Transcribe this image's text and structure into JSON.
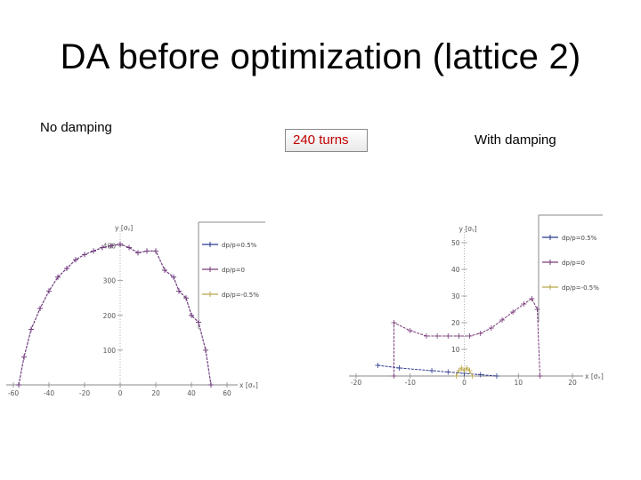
{
  "slide": {
    "title": "DA before optimization (lattice 2)",
    "left_label": "No  damping",
    "center_badge": "240 turns",
    "right_label": "With damping"
  },
  "colors": {
    "badge_text": "#c00000",
    "series_a": "#2b3a8f",
    "series_b": "#7a3a7a",
    "series_c": "#b9a64a"
  },
  "chart_data": [
    {
      "type": "line",
      "title": "",
      "xlabel": "x [σₓ]",
      "ylabel": "y [σᵧ]",
      "xlim": [
        -60,
        60
      ],
      "ylim": [
        0,
        450
      ],
      "xticks": [
        -60,
        -40,
        -20,
        0,
        20,
        40,
        60
      ],
      "xtick_labels": [
        "-60",
        "-40",
        "-20",
        "0",
        "20",
        "40",
        "60"
      ],
      "yticks": [
        100,
        200,
        300,
        400
      ],
      "ytick_labels": [
        "100",
        "200",
        "300",
        "400"
      ],
      "legend": [
        "dp/p=0.5%",
        "dp/p=0",
        "dp/p=-0.5%"
      ],
      "legend_position": "right",
      "series": [
        {
          "name": "dp/p=0.5%",
          "color": "#2b3a8f",
          "x": [
            -57,
            -54,
            -50,
            -45,
            -40,
            -35,
            -30,
            -25,
            -20,
            -15,
            -10,
            -5,
            0,
            5,
            10,
            15,
            20,
            25,
            30,
            33,
            37,
            40,
            44,
            48,
            51
          ],
          "y": [
            0,
            80,
            160,
            220,
            270,
            310,
            335,
            360,
            375,
            385,
            395,
            400,
            405,
            395,
            380,
            385,
            385,
            330,
            310,
            270,
            250,
            200,
            180,
            100,
            0
          ]
        },
        {
          "name": "dp/p=0",
          "color": "#7a3a7a",
          "x": [
            -57,
            -54,
            -50,
            -45,
            -40,
            -35,
            -30,
            -25,
            -20,
            -15,
            -10,
            -5,
            0,
            5,
            10,
            15,
            20,
            25,
            30,
            33,
            37,
            40,
            44,
            48,
            51
          ],
          "y": [
            0,
            80,
            160,
            220,
            270,
            310,
            335,
            360,
            375,
            385,
            395,
            400,
            405,
            395,
            380,
            385,
            385,
            330,
            310,
            270,
            250,
            200,
            180,
            100,
            0
          ]
        },
        {
          "name": "dp/p=-0.5%",
          "color": "#b9a64a",
          "x": [],
          "y": []
        }
      ]
    },
    {
      "type": "line",
      "title": "",
      "xlabel": "x [σₓ]",
      "ylabel": "y [σᵧ]",
      "xlim": [
        -20,
        20
      ],
      "ylim": [
        0,
        55
      ],
      "xticks": [
        -20,
        -10,
        0,
        10,
        20
      ],
      "xtick_labels": [
        "-20",
        "-10",
        "0",
        "10",
        "20"
      ],
      "yticks": [
        10,
        20,
        30,
        40,
        50
      ],
      "ytick_labels": [
        "10",
        "20",
        "30",
        "40",
        "50"
      ],
      "legend": [
        "dp/p=0.5%",
        "dp/p=0",
        "dp/p=-0.5%"
      ],
      "legend_position": "right",
      "series": [
        {
          "name": "dp/p=0.5%",
          "color": "#2b3a8f",
          "x": [
            -16,
            -12,
            -6,
            -3,
            0,
            3,
            6
          ],
          "y": [
            4,
            3,
            2,
            1.5,
            1,
            0.5,
            0
          ]
        },
        {
          "name": "dp/p=0",
          "color": "#7a3a7a",
          "x": [
            -13,
            -13,
            -10,
            -7,
            -5,
            -3,
            -1,
            1,
            3,
            5,
            7,
            9,
            11,
            12.5,
            13.5,
            14
          ],
          "y": [
            0,
            20,
            17,
            15,
            15,
            15,
            15,
            15,
            16,
            18,
            21,
            24,
            27,
            29,
            25,
            0
          ]
        },
        {
          "name": "dp/p=-0.5%",
          "color": "#b9a64a",
          "x": [
            -1.5,
            -1,
            -0.5,
            0,
            0.5,
            1,
            1.5
          ],
          "y": [
            0,
            2,
            3,
            2,
            3,
            2,
            0
          ]
        }
      ]
    }
  ]
}
